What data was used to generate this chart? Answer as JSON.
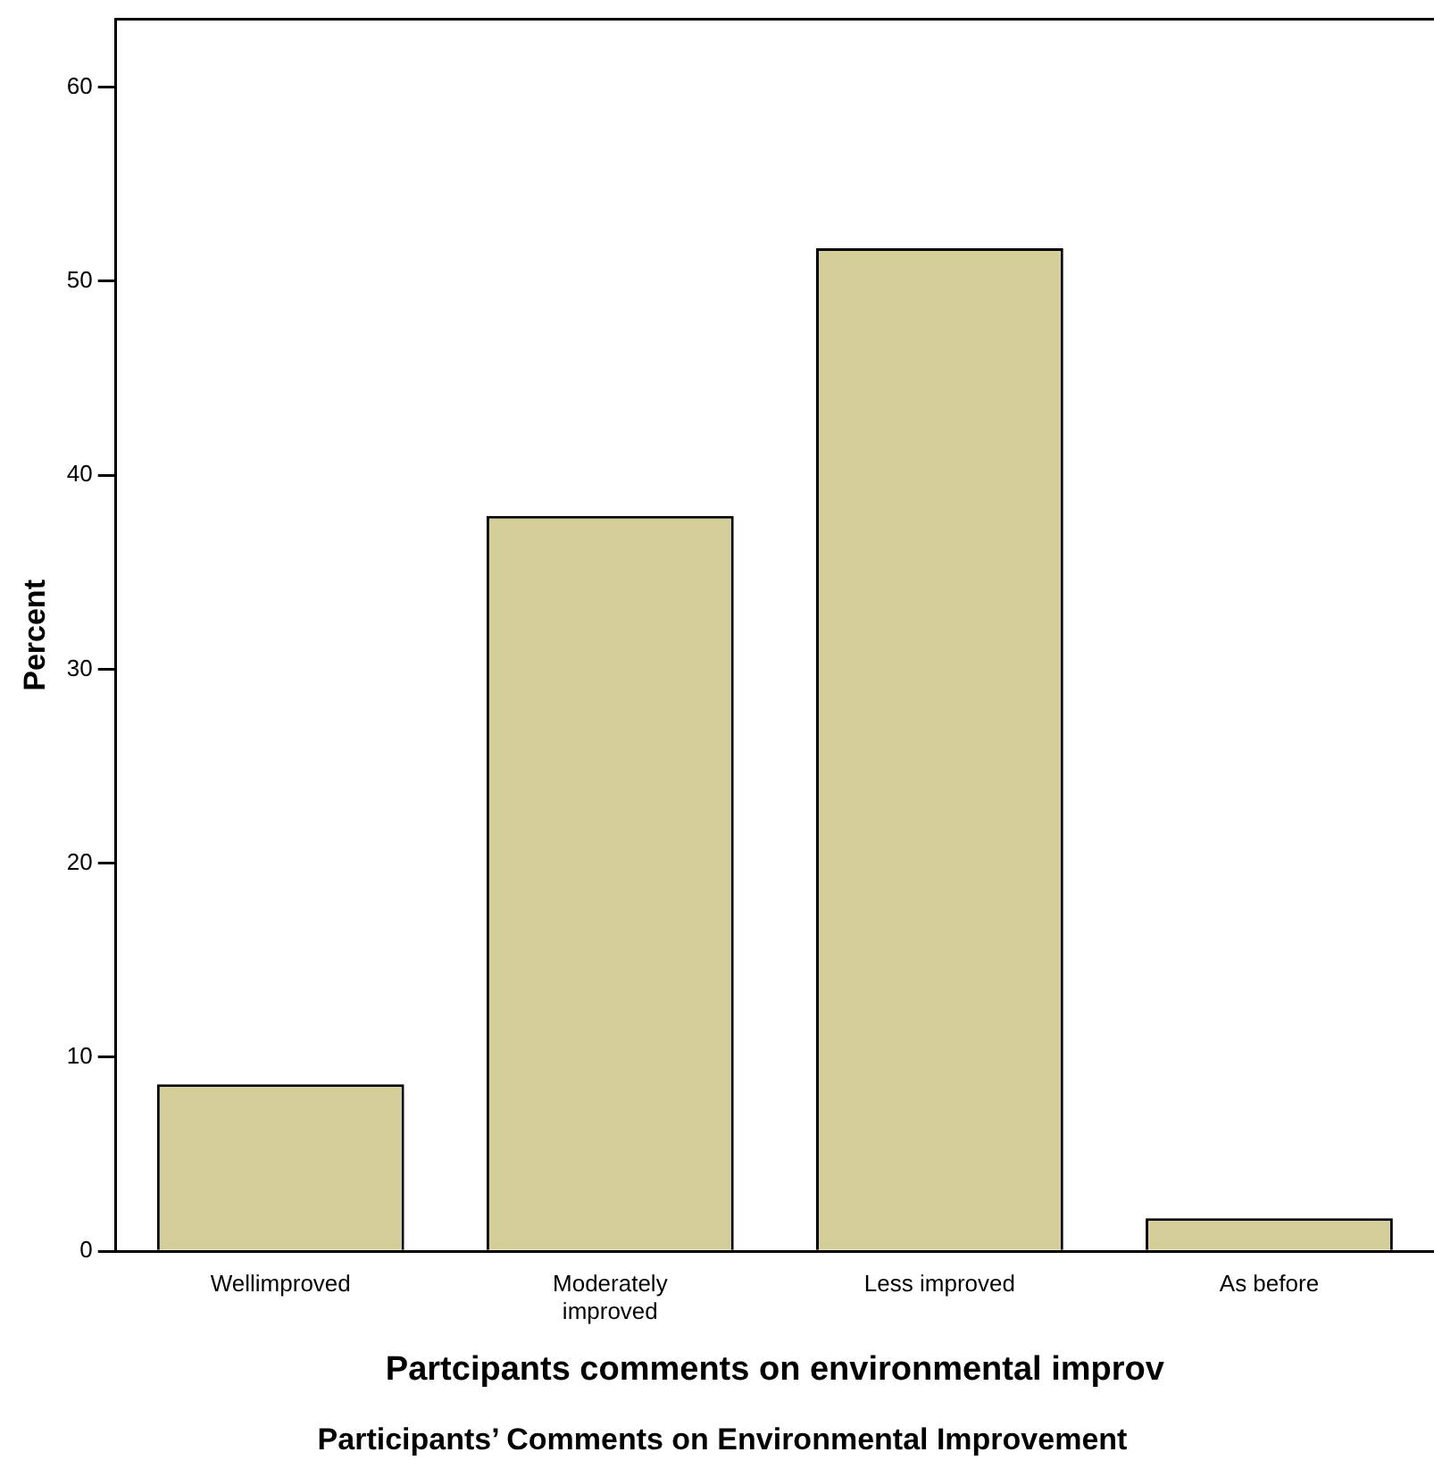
{
  "chart_data": {
    "type": "bar",
    "categories": [
      "Wellimproved",
      "Moderately improved",
      "Less improved",
      "As before"
    ],
    "values": [
      8.6,
      37.9,
      51.7,
      1.7
    ],
    "color": "#d4cf98",
    "ylabel": "Percent",
    "xlabel": "Partcipants comments on environmental improv",
    "ylim": [
      0,
      63.5
    ],
    "yticks": [
      0,
      10,
      20,
      30,
      40,
      50,
      60
    ],
    "grid": false,
    "legend": false,
    "annotations": [
      "Participants’ Comments on Environmental Improvement"
    ]
  }
}
